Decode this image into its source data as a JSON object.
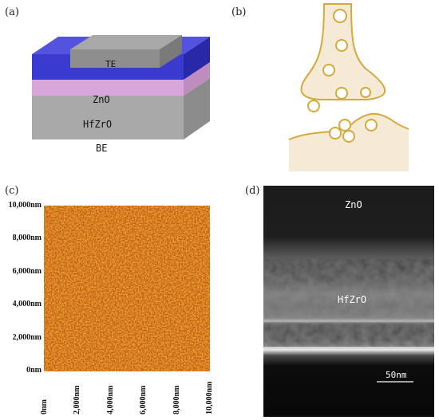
{
  "panels": {
    "a": {
      "label": "(a)",
      "layers": {
        "te": "TE",
        "zno": "ZnO",
        "hfzro": "HfZrO",
        "be": "BE"
      },
      "colors": {
        "te": "#8e8e8e",
        "zno": "#3a3ad0",
        "hfzro": "#d9a6d9",
        "be": "#a9a9a9"
      }
    },
    "b": {
      "label": "(b)",
      "colors": {
        "stroke": "#d7a83a",
        "fill": "#f4ead6"
      }
    },
    "c": {
      "label": "(c)",
      "y_ticks": [
        "10,000nm",
        "8,000nm",
        "6,000nm",
        "4,000nm",
        "2,000nm",
        "0nm"
      ],
      "x_ticks": [
        "0nm",
        "2,000nm",
        "4,000nm",
        "6,000nm",
        "8,000nm",
        "10,000nm"
      ],
      "colors": {
        "surface": "#c85a12"
      }
    },
    "d": {
      "label": "(d)",
      "zno_label": "ZnO",
      "hfzro_label": "HfZrO",
      "scale_label": "50nm"
    }
  }
}
